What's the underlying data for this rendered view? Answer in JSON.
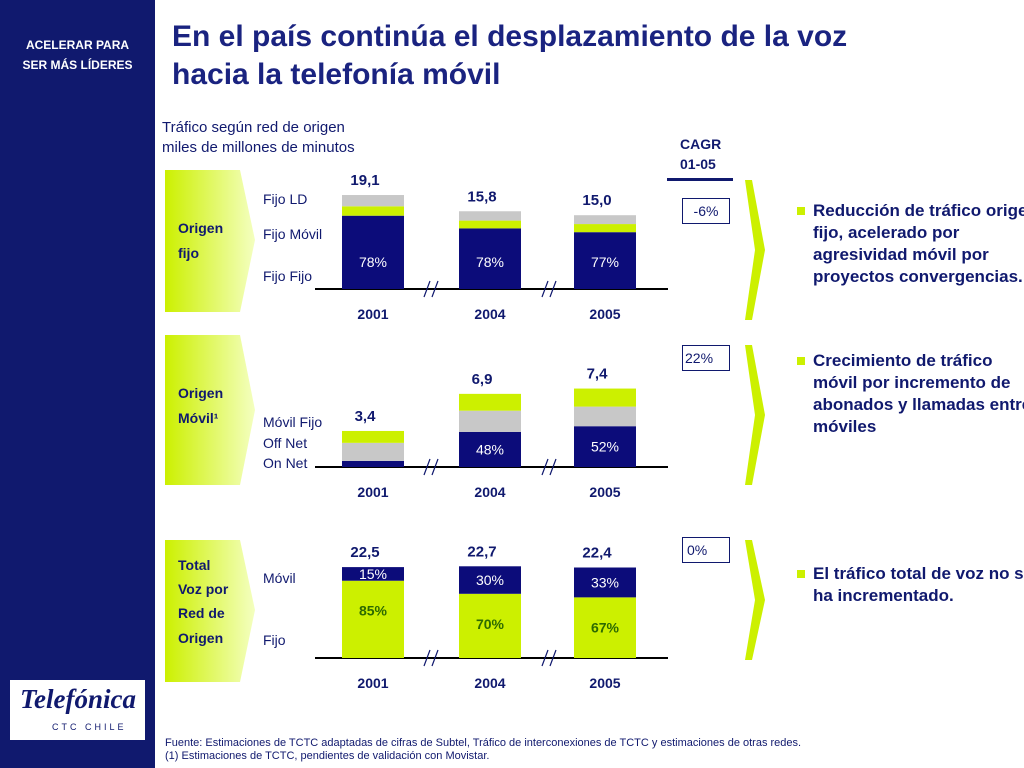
{
  "sidebar": {
    "tagline": [
      "ACELERAR PARA",
      "SER MÁS LÍDERES"
    ],
    "logo": "Telefónica",
    "logo_sub": "CTC CHILE"
  },
  "title": [
    "En el país continúa el desplazamiento  de la voz",
    "hacia la telefonía móvil"
  ],
  "subtitle": [
    "Tráfico según red de origen",
    "miles de millones de minutos"
  ],
  "cagr": {
    "header": [
      "CAGR",
      "01-05"
    ],
    "values": [
      "-6%",
      "22%",
      "0%"
    ]
  },
  "bullets": [
    "Reducción de tráfico origen fijo, acelerado por agresividad móvil por proyectos convergencias.",
    "Crecimiento de tráfico móvil por incremento de abonados y llamadas entre móviles",
    "El tráfico total de voz no se ha incrementado."
  ],
  "chart_data": [
    {
      "type": "bar",
      "stacked": true,
      "label": [
        "Origen",
        "fijo"
      ],
      "categories": [
        "2001",
        "2004",
        "2005"
      ],
      "values": [
        19.1,
        15.8,
        15.0
      ],
      "value_labels": [
        "19,1",
        "15,8",
        "15,0"
      ],
      "series": [
        {
          "name": "Fijo Fijo",
          "color": "#0c0c7a",
          "values": [
            78,
            78,
            77
          ],
          "value_labels": [
            "78%",
            "78%",
            "77%"
          ]
        },
        {
          "name": "Fijo Móvil",
          "color": "#ccf000",
          "values": [
            10,
            10,
            11
          ]
        },
        {
          "name": "Fijo LD",
          "color": "#c8c8c8",
          "values": [
            12,
            12,
            12
          ]
        }
      ]
    },
    {
      "type": "bar",
      "stacked": true,
      "label": [
        "Origen",
        "Móvil¹"
      ],
      "categories": [
        "2001",
        "2004",
        "2005"
      ],
      "values": [
        3.4,
        6.9,
        7.4
      ],
      "value_labels": [
        "3,4",
        "6,9",
        "7,4"
      ],
      "series": [
        {
          "name": "On Net",
          "color": "#0c0c7a",
          "values": [
            17,
            48,
            52
          ],
          "value_labels": [
            null,
            "48%",
            "52%"
          ]
        },
        {
          "name": "Off Net",
          "color": "#c8c8c8",
          "values": [
            50,
            29,
            25
          ]
        },
        {
          "name": "Móvil Fijo",
          "color": "#ccf000",
          "values": [
            33,
            23,
            23
          ]
        }
      ]
    },
    {
      "type": "bar",
      "stacked": true,
      "label": [
        "Total",
        "Voz por",
        "Red de",
        "Origen"
      ],
      "categories": [
        "2001",
        "2004",
        "2005"
      ],
      "values": [
        22.5,
        22.7,
        22.4
      ],
      "value_labels": [
        "22,5",
        "22,7",
        "22,4"
      ],
      "series": [
        {
          "name": "Fijo",
          "color": "#ccf000",
          "values": [
            85,
            70,
            67
          ],
          "value_labels": [
            "85%",
            "70%",
            "67%"
          ]
        },
        {
          "name": "Móvil",
          "color": "#0c0c7a",
          "values": [
            15,
            30,
            33
          ],
          "value_labels": [
            "15%",
            "30%",
            "33%"
          ]
        }
      ]
    }
  ],
  "footnotes": [
    "Fuente: Estimaciones de TCTC adaptadas de cifras de Subtel, Tráfico de interconexiones de TCTC y estimaciones de otras redes.",
    "(1) Estimaciones de TCTC, pendientes de validación con Movistar."
  ]
}
